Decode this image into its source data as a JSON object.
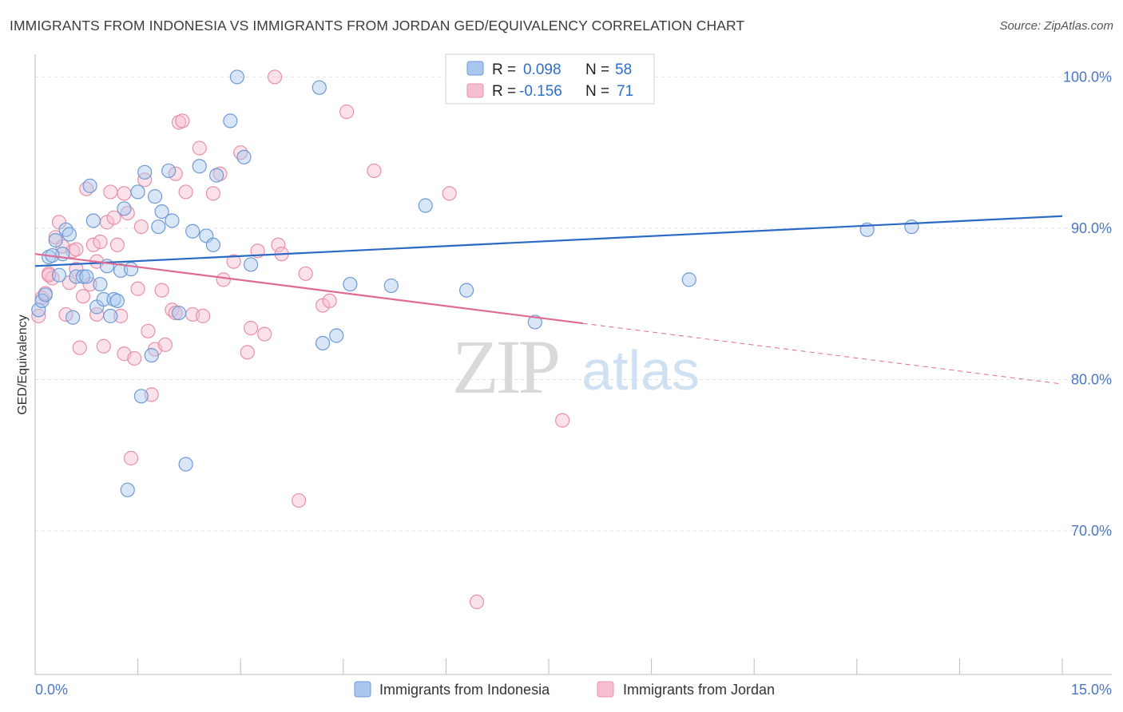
{
  "title": "IMMIGRANTS FROM INDONESIA VS IMMIGRANTS FROM JORDAN GED/EQUIVALENCY CORRELATION CHART",
  "source": "Source: ZipAtlas.com",
  "watermark": {
    "zip": "ZIP",
    "atlas": "atlas"
  },
  "colors": {
    "indonesia_fill": "#a9c7ee",
    "indonesia_stroke": "#6f9ad6",
    "indonesia_line": "#2b6ac4",
    "jordan_fill": "#f6bfd0",
    "jordan_stroke": "#e890aa",
    "jordan_line": "#e06a92",
    "tick_text": "#4a78c4"
  },
  "legend_box": {
    "rows": [
      {
        "r_label": "R =",
        "r_value": "0.098",
        "n_label": "N =",
        "n_value": "58"
      },
      {
        "r_label": "R =",
        "r_value": "-0.156",
        "n_label": "N =",
        "n_value": "71"
      }
    ]
  },
  "chart_data": {
    "type": "scatter",
    "title": "IMMIGRANTS FROM INDONESIA VS IMMIGRANTS FROM JORDAN GED/EQUIVALENCY CORRELATION CHART",
    "xlabel": "",
    "ylabel": "GED/Equivalency",
    "xlim": [
      0,
      15
    ],
    "ylim": [
      60.5,
      101.5
    ],
    "x_tick_labels": [
      {
        "value": 0,
        "label": "0.0%"
      },
      {
        "value": 15,
        "label": "15.0%"
      }
    ],
    "y_tick_labels": [
      {
        "value": 100,
        "label": "100.0%"
      },
      {
        "value": 90,
        "label": "90.0%"
      },
      {
        "value": 80,
        "label": "80.0%"
      },
      {
        "value": 70,
        "label": "70.0%"
      }
    ],
    "grid": true,
    "legend_position": "bottom",
    "series": [
      {
        "name": "Immigrants from Indonesia",
        "trend": {
          "x": [
            0,
            15
          ],
          "y": [
            87.5,
            90.8
          ],
          "dashed_from": null
        },
        "points": [
          [
            0.05,
            84.6
          ],
          [
            0.1,
            85.2
          ],
          [
            0.15,
            85.6
          ],
          [
            0.2,
            88.1
          ],
          [
            0.3,
            89.2
          ],
          [
            0.35,
            86.9
          ],
          [
            0.4,
            88.3
          ],
          [
            0.45,
            89.9
          ],
          [
            0.5,
            89.6
          ],
          [
            0.55,
            84.1
          ],
          [
            0.6,
            86.8
          ],
          [
            0.7,
            86.8
          ],
          [
            0.8,
            92.8
          ],
          [
            0.85,
            90.5
          ],
          [
            0.9,
            84.8
          ],
          [
            0.95,
            86.3
          ],
          [
            1.0,
            85.3
          ],
          [
            1.05,
            87.5
          ],
          [
            1.1,
            84.2
          ],
          [
            1.15,
            85.3
          ],
          [
            1.2,
            85.2
          ],
          [
            1.25,
            87.2
          ],
          [
            1.3,
            91.3
          ],
          [
            1.4,
            87.3
          ],
          [
            1.5,
            92.4
          ],
          [
            1.55,
            78.9
          ],
          [
            1.6,
            93.7
          ],
          [
            1.7,
            81.6
          ],
          [
            1.75,
            92.1
          ],
          [
            1.8,
            90.1
          ],
          [
            1.85,
            91.1
          ],
          [
            1.95,
            93.8
          ],
          [
            2.0,
            90.5
          ],
          [
            2.1,
            84.4
          ],
          [
            2.2,
            74.4
          ],
          [
            2.3,
            89.8
          ],
          [
            2.4,
            94.1
          ],
          [
            2.5,
            89.5
          ],
          [
            2.6,
            88.9
          ],
          [
            2.65,
            93.5
          ],
          [
            2.85,
            97.1
          ],
          [
            2.95,
            100.0
          ],
          [
            3.05,
            94.7
          ],
          [
            3.15,
            87.6
          ],
          [
            4.15,
            99.3
          ],
          [
            4.2,
            82.4
          ],
          [
            4.4,
            82.9
          ],
          [
            4.6,
            86.3
          ],
          [
            5.2,
            86.2
          ],
          [
            5.7,
            91.5
          ],
          [
            6.3,
            85.9
          ],
          [
            7.3,
            83.8
          ],
          [
            9.55,
            86.6
          ],
          [
            12.15,
            89.9
          ],
          [
            12.8,
            90.1
          ],
          [
            1.35,
            72.7
          ],
          [
            0.25,
            88.2
          ],
          [
            0.75,
            86.8
          ]
        ]
      },
      {
        "name": "Immigrants from Jordan",
        "trend": {
          "x": [
            0,
            15
          ],
          "y": [
            88.3,
            79.7
          ],
          "dashed_from": 8.0
        },
        "points": [
          [
            0.05,
            84.2
          ],
          [
            0.1,
            85.4
          ],
          [
            0.15,
            85.7
          ],
          [
            0.2,
            87.0
          ],
          [
            0.25,
            86.7
          ],
          [
            0.3,
            89.4
          ],
          [
            0.35,
            90.4
          ],
          [
            0.4,
            88.8
          ],
          [
            0.45,
            84.3
          ],
          [
            0.5,
            86.4
          ],
          [
            0.55,
            88.5
          ],
          [
            0.6,
            87.3
          ],
          [
            0.65,
            82.1
          ],
          [
            0.7,
            85.5
          ],
          [
            0.75,
            92.6
          ],
          [
            0.8,
            86.3
          ],
          [
            0.85,
            88.9
          ],
          [
            0.9,
            87.8
          ],
          [
            0.95,
            89.1
          ],
          [
            1.0,
            82.2
          ],
          [
            1.05,
            90.4
          ],
          [
            1.1,
            92.4
          ],
          [
            1.15,
            90.7
          ],
          [
            1.2,
            88.9
          ],
          [
            1.25,
            84.2
          ],
          [
            1.3,
            81.7
          ],
          [
            1.35,
            91.0
          ],
          [
            1.4,
            74.8
          ],
          [
            1.45,
            81.4
          ],
          [
            1.5,
            86.0
          ],
          [
            1.55,
            90.1
          ],
          [
            1.6,
            93.2
          ],
          [
            1.65,
            83.2
          ],
          [
            1.7,
            79.0
          ],
          [
            1.75,
            82.0
          ],
          [
            1.85,
            85.9
          ],
          [
            1.9,
            82.3
          ],
          [
            2.0,
            84.6
          ],
          [
            2.05,
            93.6
          ],
          [
            2.1,
            97.0
          ],
          [
            2.15,
            97.1
          ],
          [
            2.2,
            92.4
          ],
          [
            2.3,
            84.3
          ],
          [
            2.4,
            95.3
          ],
          [
            2.45,
            84.2
          ],
          [
            2.6,
            92.3
          ],
          [
            2.7,
            93.6
          ],
          [
            2.75,
            86.6
          ],
          [
            2.9,
            87.8
          ],
          [
            3.0,
            95.0
          ],
          [
            3.1,
            81.8
          ],
          [
            3.15,
            83.4
          ],
          [
            3.25,
            88.5
          ],
          [
            3.35,
            83.0
          ],
          [
            3.5,
            100.0
          ],
          [
            3.55,
            88.9
          ],
          [
            3.6,
            88.3
          ],
          [
            3.85,
            72.0
          ],
          [
            3.95,
            87.0
          ],
          [
            4.2,
            84.9
          ],
          [
            4.3,
            85.2
          ],
          [
            4.55,
            97.7
          ],
          [
            4.95,
            93.8
          ],
          [
            6.05,
            92.3
          ],
          [
            6.45,
            65.3
          ],
          [
            7.7,
            77.3
          ],
          [
            0.2,
            86.9
          ],
          [
            0.6,
            88.6
          ],
          [
            1.3,
            92.3
          ],
          [
            2.05,
            84.4
          ],
          [
            0.9,
            84.3
          ]
        ]
      }
    ]
  },
  "legend": {
    "items": [
      {
        "label": "Immigrants from Indonesia"
      },
      {
        "label": "Immigrants from Jordan"
      }
    ]
  }
}
